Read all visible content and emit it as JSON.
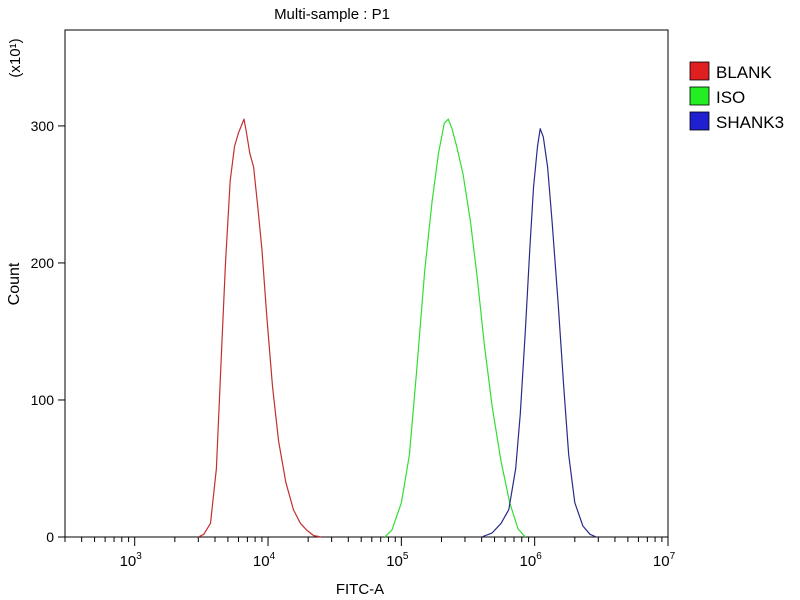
{
  "chart_data": {
    "type": "line",
    "title": "Multi-sample : P1",
    "xlabel": "FITC-A",
    "ylabel": "Count",
    "y_multiplier": "(x10¹)",
    "x_scale": "log",
    "xlim": [
      300,
      10000000
    ],
    "ylim": [
      0,
      370
    ],
    "x_ticks": [
      {
        "value": 1000,
        "base": "10",
        "exp": "3"
      },
      {
        "value": 10000,
        "base": "10",
        "exp": "4"
      },
      {
        "value": 100000,
        "base": "10",
        "exp": "5"
      },
      {
        "value": 1000000,
        "base": "10",
        "exp": "6"
      },
      {
        "value": 10000000,
        "base": "10",
        "exp": "7"
      }
    ],
    "y_ticks": [
      {
        "value": 0,
        "label": "0"
      },
      {
        "value": 100,
        "label": "100"
      },
      {
        "value": 200,
        "label": "200"
      },
      {
        "value": 300,
        "label": "300"
      }
    ],
    "grid": false,
    "legend_position": "right",
    "series": [
      {
        "name": "BLANK",
        "color": "#c03030",
        "legend_color": "#e02020",
        "points": [
          [
            3000,
            0
          ],
          [
            3300,
            2
          ],
          [
            3700,
            10
          ],
          [
            4100,
            50
          ],
          [
            4500,
            140
          ],
          [
            4800,
            200
          ],
          [
            5200,
            260
          ],
          [
            5600,
            285
          ],
          [
            6000,
            295
          ],
          [
            6300,
            300
          ],
          [
            6600,
            305
          ],
          [
            6900,
            295
          ],
          [
            7300,
            280
          ],
          [
            7800,
            270
          ],
          [
            8400,
            240
          ],
          [
            9000,
            210
          ],
          [
            9800,
            160
          ],
          [
            10800,
            110
          ],
          [
            12000,
            70
          ],
          [
            13600,
            40
          ],
          [
            15500,
            20
          ],
          [
            17500,
            10
          ],
          [
            19500,
            5
          ],
          [
            22000,
            1
          ],
          [
            25000,
            0
          ]
        ]
      },
      {
        "name": "ISO",
        "color": "#33dd33",
        "legend_color": "#22ee22",
        "points": [
          [
            75000,
            0
          ],
          [
            85000,
            5
          ],
          [
            100000,
            25
          ],
          [
            115000,
            60
          ],
          [
            130000,
            120
          ],
          [
            150000,
            195
          ],
          [
            170000,
            245
          ],
          [
            190000,
            280
          ],
          [
            210000,
            302
          ],
          [
            225000,
            305
          ],
          [
            240000,
            298
          ],
          [
            260000,
            285
          ],
          [
            290000,
            265
          ],
          [
            330000,
            230
          ],
          [
            370000,
            190
          ],
          [
            420000,
            140
          ],
          [
            480000,
            95
          ],
          [
            560000,
            55
          ],
          [
            650000,
            25
          ],
          [
            750000,
            6
          ],
          [
            850000,
            0
          ]
        ]
      },
      {
        "name": "SHANK3",
        "color": "#2a2a8a",
        "legend_color": "#2020d0",
        "points": [
          [
            400000,
            0
          ],
          [
            480000,
            3
          ],
          [
            560000,
            10
          ],
          [
            640000,
            20
          ],
          [
            720000,
            50
          ],
          [
            780000,
            90
          ],
          [
            850000,
            150
          ],
          [
            920000,
            210
          ],
          [
            980000,
            255
          ],
          [
            1050000,
            285
          ],
          [
            1100000,
            298
          ],
          [
            1160000,
            292
          ],
          [
            1250000,
            270
          ],
          [
            1350000,
            230
          ],
          [
            1500000,
            170
          ],
          [
            1650000,
            110
          ],
          [
            1800000,
            60
          ],
          [
            2000000,
            25
          ],
          [
            2300000,
            8
          ],
          [
            2600000,
            2
          ],
          [
            2900000,
            0
          ]
        ]
      }
    ]
  }
}
